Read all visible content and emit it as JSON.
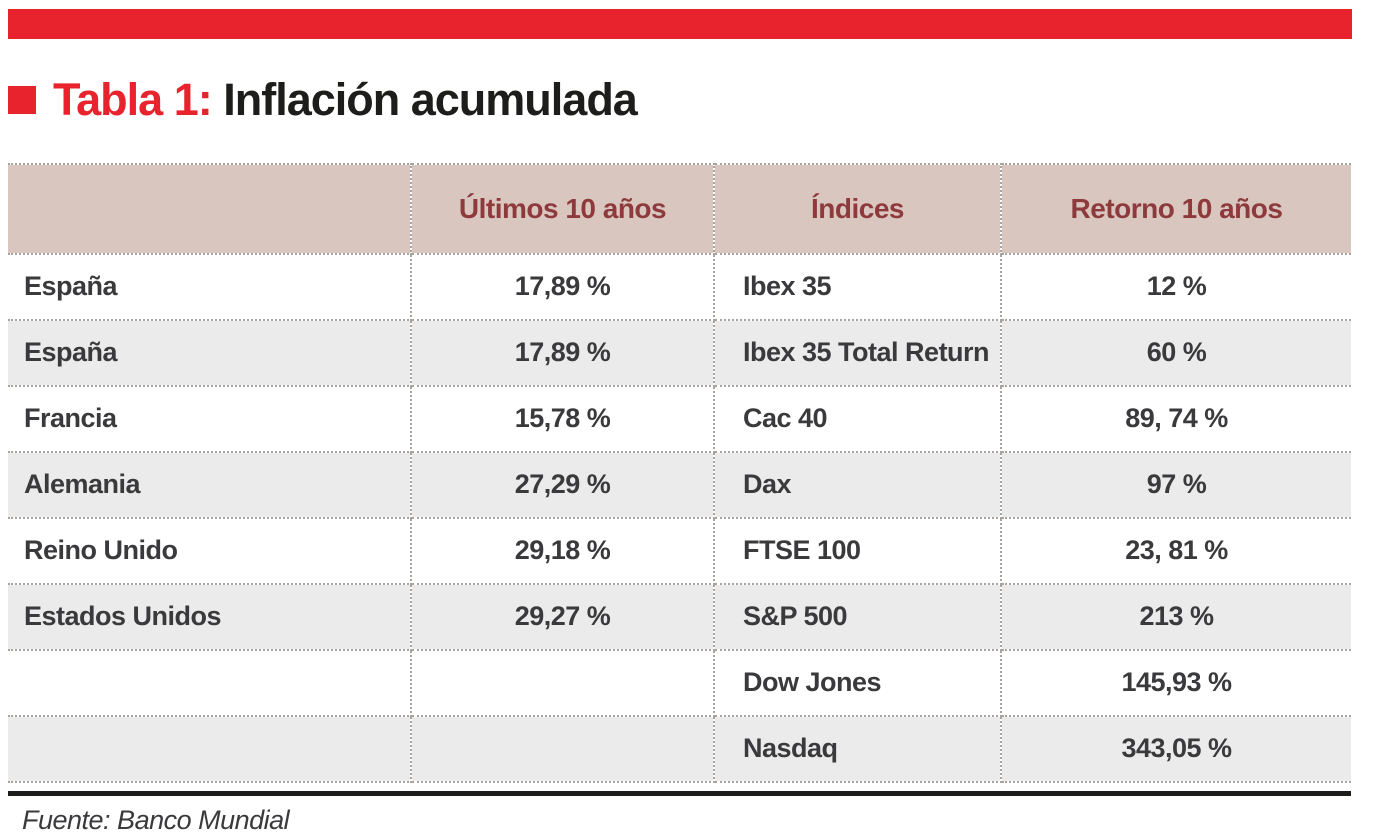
{
  "title": {
    "tag": "Tabla 1:",
    "text": "Inflación acumulada"
  },
  "colors": {
    "accent_red": "#e8232d",
    "header_bg": "#d9c7bf",
    "header_text": "#8e3a3d",
    "row_alt_bg": "#ebebeb",
    "body_text": "#3a3a3c"
  },
  "table": {
    "col_headers": {
      "country": "",
      "inflation_period": "Últimos 10 años",
      "indices": "Índices",
      "returns": "Retorno 10 años"
    },
    "rows": [
      {
        "country": "España",
        "inflation": "17,89 %",
        "index": "Ibex 35",
        "return": "12 %"
      },
      {
        "country": "España",
        "inflation": "17,89 %",
        "index": "Ibex 35 Total Return",
        "return": "60 %"
      },
      {
        "country": "Francia",
        "inflation": "15,78 %",
        "index": "Cac 40",
        "return": "89, 74 %"
      },
      {
        "country": "Alemania",
        "inflation": "27,29 %",
        "index": "Dax",
        "return": "97 %"
      },
      {
        "country": "Reino Unido",
        "inflation": "29,18 %",
        "index": "FTSE 100",
        "return": "23, 81 %"
      },
      {
        "country": "Estados Unidos",
        "inflation": "29,27 %",
        "index": "S&P 500",
        "return": "213 %"
      },
      {
        "country": "",
        "inflation": "",
        "index": "Dow Jones",
        "return": "145,93 %"
      },
      {
        "country": "",
        "inflation": "",
        "index": "Nasdaq",
        "return": "343,05 %"
      }
    ]
  },
  "source_note": "Fuente: Banco Mundial"
}
